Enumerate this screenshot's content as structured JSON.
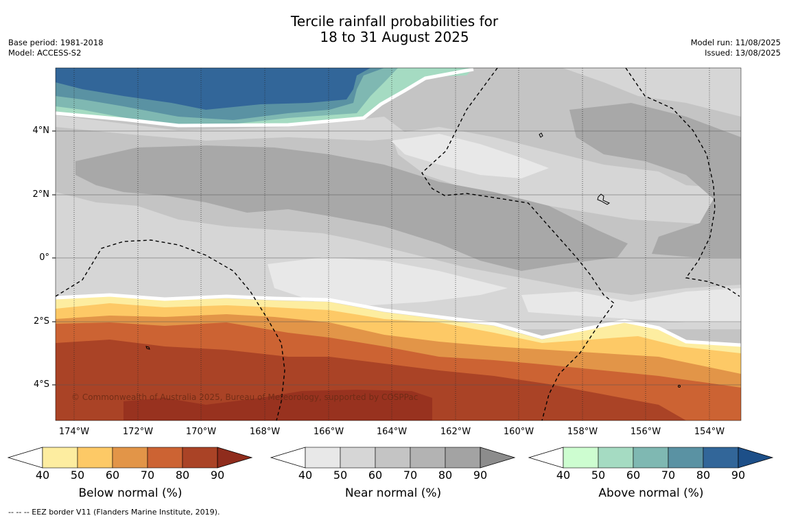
{
  "title": {
    "line1": "Tercile rainfall probabilities for",
    "line2": "18 to 31 August 2025"
  },
  "meta_left": {
    "base_period": "Base period: 1981-2018",
    "model": "Model: ACCESS-S2"
  },
  "meta_right": {
    "model_run": "Model run: 11/08/2025",
    "issued": "Issued: 13/08/2025"
  },
  "credit": "© Commonwealth of Australia 2025, Bureau of Meteorology, supported by COSPPac",
  "footer": "-- -- -- EEZ border V11 (Flanders Marine Institute, 2019).",
  "axes": {
    "lat_labels": [
      "4°N",
      "2°N",
      "0°",
      "2°S",
      "4°S"
    ],
    "lon_labels": [
      "174°W",
      "172°W",
      "170°W",
      "168°W",
      "166°W",
      "164°W",
      "162°W",
      "160°W",
      "158°W",
      "156°W",
      "154°W"
    ]
  },
  "colorbars": {
    "ticks": [
      "40",
      "50",
      "60",
      "70",
      "80",
      "90"
    ],
    "below": {
      "title": "Below normal (%)",
      "colors": [
        "#fdeda0",
        "#fdc966",
        "#e29548",
        "#cc6333",
        "#aa4326",
        "#8f2c1c"
      ]
    },
    "near": {
      "title": "Near normal (%)",
      "colors": [
        "#e8e8e8",
        "#d6d6d6",
        "#c4c4c4",
        "#b3b3b3",
        "#a3a3a3",
        "#8c8c8c"
      ]
    },
    "above": {
      "title": "Above normal (%)",
      "colors": [
        "#cdfdd0",
        "#a5dbc2",
        "#7fb8b2",
        "#5a92a3",
        "#326699",
        "#1d4f88"
      ]
    }
  },
  "map_colors": {
    "near_40": "#e8e8e8",
    "near_50": "#d6d6d6",
    "near_60": "#c4c4c4",
    "near_70": "#a8a8a8",
    "below_40": "#fdeda0",
    "below_50": "#fdc966",
    "below_60": "#e29548",
    "below_70": "#cc6333",
    "below_80": "#aa4326",
    "below_90": "#98321f",
    "above_50": "#a5dbc2",
    "above_60": "#7fb8b2",
    "above_70": "#5a92a3",
    "above_80": "#326699"
  }
}
